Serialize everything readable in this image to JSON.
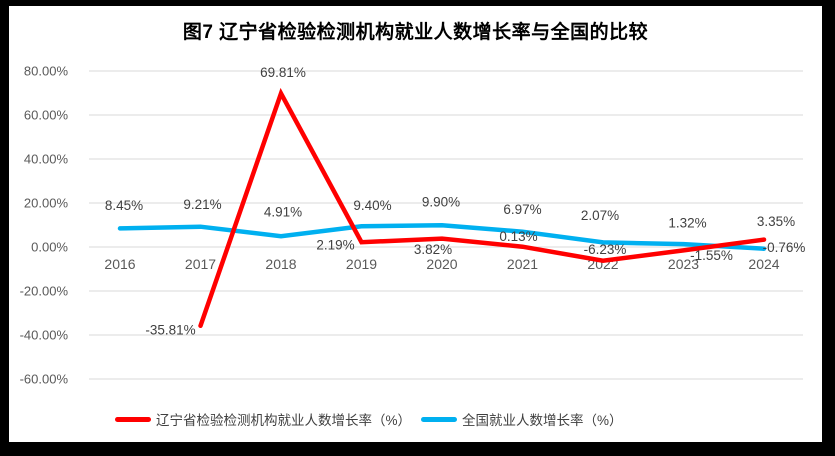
{
  "window": {
    "background": "#ffffff",
    "frame_color": "#000000"
  },
  "chart_data": {
    "type": "line",
    "title": "图7 辽宁省检验检测机构就业人数增长率与全国的比较",
    "categories": [
      "2016",
      "2017",
      "2018",
      "2019",
      "2020",
      "2021",
      "2022",
      "2023",
      "2024"
    ],
    "series": [
      {
        "name": "辽宁省检验检测机构就业人数增长率（%）",
        "color": "#ff0000",
        "values": [
          null,
          -35.81,
          69.81,
          2.19,
          3.82,
          0.13,
          -6.23,
          -1.55,
          3.35
        ],
        "labels": [
          "",
          "-35.81%",
          "69.81%",
          "2.19%",
          "3.82%",
          "0.13%",
          "-6.23%",
          "-1.55%",
          "3.35%"
        ],
        "label_offsets": [
          [
            0,
            0
          ],
          [
            -30,
            4
          ],
          [
            2,
            -21
          ],
          [
            -26,
            3
          ],
          [
            -9,
            11
          ],
          [
            -4,
            -10
          ],
          [
            2,
            -11
          ],
          [
            28,
            5
          ],
          [
            12,
            -18
          ]
        ]
      },
      {
        "name": "全国就业人数增长率（%）",
        "color": "#00b0f0",
        "values": [
          8.45,
          9.21,
          4.91,
          9.4,
          9.9,
          6.97,
          2.07,
          1.32,
          -0.76
        ],
        "labels": [
          "8.45%",
          "9.21%",
          "4.91%",
          "9.40%",
          "9.90%",
          "6.97%",
          "2.07%",
          "1.32%",
          "-0.76%"
        ],
        "label_offsets": [
          [
            4,
            -23
          ],
          [
            2,
            -22
          ],
          [
            2,
            -24
          ],
          [
            11,
            -21
          ],
          [
            -1,
            -23
          ],
          [
            0,
            -22
          ],
          [
            -3,
            -27
          ],
          [
            4,
            -21
          ],
          [
            20,
            -1
          ]
        ]
      }
    ],
    "y_axis": {
      "min": -60,
      "max": 80,
      "step": 20,
      "tick_labels": [
        "80.00%",
        "60.00%",
        "40.00%",
        "20.00%",
        "0.00%",
        "-20.00%",
        "-40.00%",
        "-60.00%"
      ]
    },
    "grid": true,
    "gridline_color": "#d9d9d9",
    "axis_text_color": "#595959",
    "label_text_color": "#404040",
    "legend_position": "bottom",
    "line_width": 4.5,
    "draw_order_note": "red series drawn on top of blue"
  }
}
